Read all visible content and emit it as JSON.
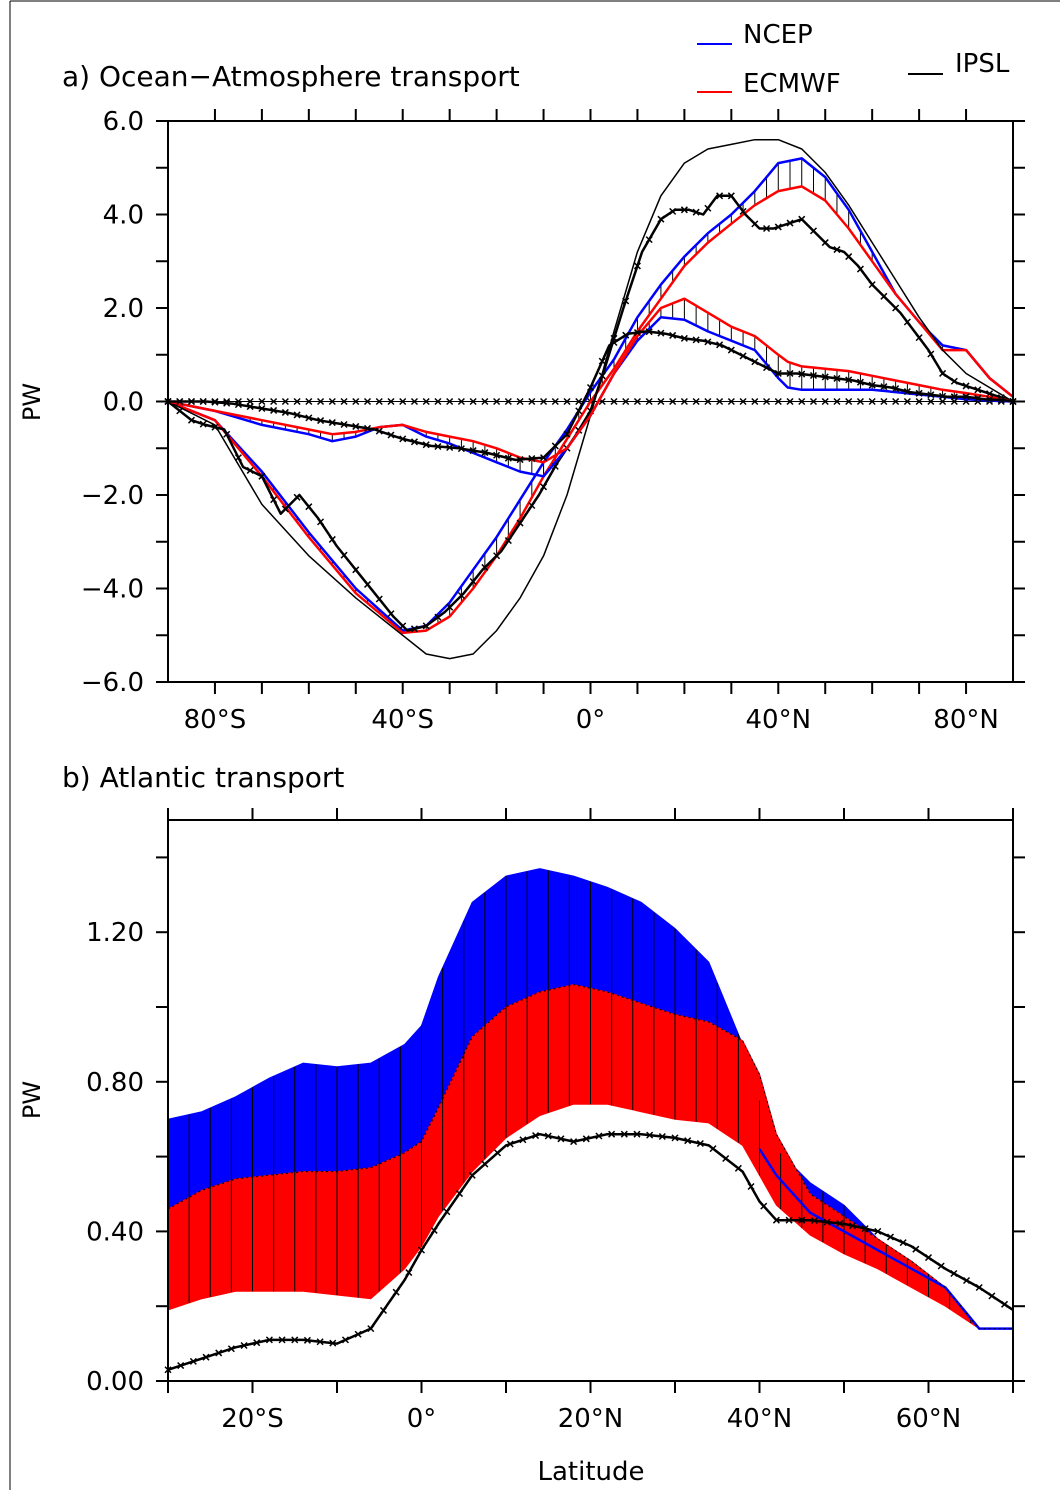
{
  "legend": {
    "ncep": {
      "label": "NCEP",
      "color": "#0000ff"
    },
    "ecmwf": {
      "label": "ECMWF",
      "color": "#ff0000"
    },
    "ipsl": {
      "label": "IPSL",
      "color": "#000000"
    }
  },
  "chart_data": [
    {
      "type": "line",
      "title": "a) Ocean−Atmosphere transport",
      "ylabel": "PW",
      "xlabel": "",
      "xlim": [
        -90,
        90
      ],
      "ylim": [
        -6,
        6
      ],
      "xticks": [
        {
          "value": -80,
          "label": "80°S"
        },
        {
          "value": -40,
          "label": "40°S"
        },
        {
          "value": 0,
          "label": "0°"
        },
        {
          "value": 40,
          "label": "40°N"
        },
        {
          "value": 80,
          "label": "80°N"
        }
      ],
      "yticks": [
        {
          "value": -6,
          "label": "−6.0"
        },
        {
          "value": -4,
          "label": "−4.0"
        },
        {
          "value": -2,
          "label": "−2.0"
        },
        {
          "value": 0,
          "label": "0.0"
        },
        {
          "value": 2,
          "label": "2.0"
        },
        {
          "value": 4,
          "label": "4.0"
        },
        {
          "value": 6,
          "label": "6.0"
        }
      ],
      "series": [
        {
          "name": "NCEP",
          "key": "ncep_total",
          "color": "#0000ff",
          "x": [
            -90,
            -80,
            -70,
            -60,
            -50,
            -40,
            -35,
            -30,
            -25,
            -20,
            -15,
            -10,
            -5,
            0,
            5,
            10,
            15,
            20,
            25,
            30,
            35,
            40,
            45,
            50,
            55,
            60,
            65,
            70,
            75,
            80,
            85,
            90
          ],
          "y": [
            0,
            -0.4,
            -1.5,
            -2.8,
            -4.0,
            -4.9,
            -4.8,
            -4.3,
            -3.6,
            -2.9,
            -2.1,
            -1.3,
            -0.6,
            0.2,
            0.9,
            1.8,
            2.5,
            3.1,
            3.6,
            4.0,
            4.5,
            5.1,
            5.2,
            4.8,
            4.1,
            3.2,
            2.3,
            1.7,
            1.2,
            1.1,
            0.5,
            0.1
          ]
        },
        {
          "name": "ECMWF",
          "key": "ecmwf_total",
          "color": "#ff0000",
          "x": [
            -90,
            -80,
            -70,
            -60,
            -50,
            -40,
            -35,
            -30,
            -25,
            -20,
            -15,
            -10,
            -5,
            0,
            5,
            10,
            15,
            20,
            25,
            30,
            35,
            40,
            45,
            50,
            55,
            60,
            65,
            70,
            75,
            80,
            85,
            90
          ],
          "y": [
            0,
            -0.4,
            -1.6,
            -2.9,
            -4.1,
            -4.95,
            -4.9,
            -4.6,
            -4.0,
            -3.3,
            -2.5,
            -1.6,
            -0.8,
            0.0,
            0.7,
            1.5,
            2.2,
            2.9,
            3.4,
            3.8,
            4.2,
            4.5,
            4.6,
            4.3,
            3.7,
            3.0,
            2.3,
            1.7,
            1.1,
            1.1,
            0.5,
            0.1
          ]
        },
        {
          "name": "IPSL",
          "key": "ipsl_total",
          "color": "#000000",
          "x": [
            -90,
            -80,
            -70,
            -60,
            -50,
            -40,
            -35,
            -30,
            -25,
            -20,
            -15,
            -10,
            -5,
            0,
            5,
            10,
            15,
            20,
            25,
            30,
            35,
            40,
            45,
            50,
            55,
            60,
            65,
            70,
            75,
            80,
            85,
            90
          ],
          "y": [
            0,
            -0.5,
            -2.2,
            -3.3,
            -4.2,
            -5.0,
            -5.4,
            -5.5,
            -5.4,
            -4.9,
            -4.2,
            -3.3,
            -2.0,
            -0.3,
            1.5,
            3.2,
            4.4,
            5.1,
            5.4,
            5.5,
            5.6,
            5.6,
            5.4,
            4.9,
            4.2,
            3.4,
            2.6,
            1.8,
            1.1,
            0.6,
            0.3,
            0.0
          ]
        },
        {
          "name": "IPSL",
          "key": "ipsl_marked_total",
          "color": "#000000",
          "markers": true,
          "x": [
            -90,
            -85,
            -82,
            -78,
            -74,
            -70,
            -66,
            -62,
            -58,
            -54,
            -50,
            -46,
            -42,
            -39,
            -35,
            -31,
            -27,
            -23,
            -19,
            -15,
            -11,
            -7,
            -3,
            0,
            3,
            7,
            11,
            15,
            18,
            21,
            24,
            27,
            30,
            33,
            36,
            39,
            42,
            45,
            48,
            51,
            54,
            57,
            60,
            63,
            66,
            69,
            72,
            75,
            78,
            81,
            84,
            87,
            90
          ],
          "y": [
            0,
            -0.4,
            -0.5,
            -0.6,
            -1.4,
            -1.6,
            -2.4,
            -2.0,
            -2.5,
            -3.1,
            -3.6,
            -4.1,
            -4.6,
            -4.9,
            -4.8,
            -4.5,
            -4.1,
            -3.6,
            -3.2,
            -2.6,
            -2.0,
            -1.3,
            -0.7,
            -0.2,
            0.7,
            2.0,
            3.2,
            3.9,
            4.1,
            4.1,
            4.0,
            4.4,
            4.4,
            4.0,
            3.7,
            3.7,
            3.8,
            3.9,
            3.6,
            3.3,
            3.2,
            2.9,
            2.5,
            2.2,
            1.9,
            1.5,
            1.1,
            0.6,
            0.4,
            0.3,
            0.2,
            0.1,
            0
          ]
        },
        {
          "name": "NCEP",
          "key": "ncep_component",
          "color": "#0000ff",
          "x": [
            -90,
            -80,
            -70,
            -60,
            -55,
            -50,
            -45,
            -40,
            -35,
            -30,
            -25,
            -20,
            -15,
            -10,
            -5,
            0,
            5,
            10,
            15,
            20,
            25,
            30,
            35,
            40,
            42,
            45,
            50,
            55,
            60,
            65,
            70,
            75,
            80,
            85,
            90
          ],
          "y": [
            0,
            -0.2,
            -0.5,
            -0.7,
            -0.85,
            -0.75,
            -0.55,
            -0.5,
            -0.75,
            -0.9,
            -1.1,
            -1.3,
            -1.5,
            -1.6,
            -1.0,
            -0.3,
            0.6,
            1.3,
            1.8,
            1.75,
            1.5,
            1.3,
            1.1,
            0.5,
            0.3,
            0.25,
            0.25,
            0.25,
            0.25,
            0.2,
            0.15,
            0.1,
            0.05,
            0.02,
            0
          ]
        },
        {
          "name": "ECMWF",
          "key": "ecmwf_component",
          "color": "#ff0000",
          "x": [
            -90,
            -80,
            -70,
            -60,
            -55,
            -50,
            -45,
            -40,
            -35,
            -30,
            -25,
            -20,
            -15,
            -10,
            -5,
            0,
            5,
            10,
            15,
            20,
            25,
            30,
            35,
            40,
            42,
            45,
            50,
            55,
            60,
            65,
            70,
            75,
            80,
            85,
            90
          ],
          "y": [
            0,
            -0.2,
            -0.4,
            -0.6,
            -0.7,
            -0.65,
            -0.55,
            -0.5,
            -0.65,
            -0.75,
            -0.85,
            -1.0,
            -1.2,
            -1.3,
            -1.0,
            -0.3,
            0.6,
            1.4,
            2.0,
            2.2,
            1.9,
            1.6,
            1.4,
            1.0,
            0.85,
            0.75,
            0.7,
            0.65,
            0.55,
            0.45,
            0.35,
            0.25,
            0.18,
            0.1,
            0
          ]
        },
        {
          "name": "IPSL",
          "key": "ipsl_marked_component",
          "color": "#000000",
          "markers": true,
          "x": [
            -90,
            -82,
            -76,
            -70,
            -64,
            -58,
            -52,
            -46,
            -40,
            -34,
            -28,
            -22,
            -16,
            -10,
            -5,
            0,
            4,
            8,
            12,
            16,
            20,
            24,
            28,
            32,
            36,
            40,
            44,
            48,
            52,
            56,
            60,
            64,
            68,
            72,
            76,
            80,
            84,
            88,
            90
          ],
          "y": [
            0,
            0.0,
            -0.05,
            -0.15,
            -0.25,
            -0.4,
            -0.5,
            -0.6,
            -0.8,
            -0.95,
            -1.0,
            -1.1,
            -1.25,
            -1.2,
            -0.7,
            0.3,
            1.2,
            1.45,
            1.5,
            1.45,
            1.35,
            1.3,
            1.2,
            1.0,
            0.8,
            0.6,
            0.6,
            0.55,
            0.5,
            0.45,
            0.35,
            0.3,
            0.2,
            0.15,
            0.1,
            0.1,
            0.05,
            0.03,
            0
          ]
        },
        {
          "name": "IPSL",
          "key": "zero_line",
          "color": "#000000",
          "markers": true,
          "x": [
            -90,
            90
          ],
          "y": [
            0,
            0
          ]
        }
      ]
    },
    {
      "type": "area",
      "title": "b) Atlantic transport",
      "ylabel": "PW",
      "xlabel": "Latitude",
      "xlim": [
        -30,
        70
      ],
      "ylim": [
        0,
        1.5
      ],
      "xticks": [
        {
          "value": -20,
          "label": "20°S"
        },
        {
          "value": 0,
          "label": "0°"
        },
        {
          "value": 20,
          "label": "20°N"
        },
        {
          "value": 40,
          "label": "40°N"
        },
        {
          "value": 60,
          "label": "60°N"
        }
      ],
      "yticks": [
        {
          "value": 0,
          "label": "0.00"
        },
        {
          "value": 0.4,
          "label": "0.40"
        },
        {
          "value": 0.8,
          "label": "0.80"
        },
        {
          "value": 1.2,
          "label": "1.20"
        }
      ],
      "x": [
        -30,
        -26,
        -22,
        -18,
        -14,
        -10,
        -6,
        -2,
        0,
        2,
        6,
        10,
        14,
        18,
        22,
        26,
        30,
        34,
        38,
        40,
        42,
        46,
        50,
        54,
        58,
        62,
        66,
        70
      ],
      "series": [
        {
          "name": "NCEP",
          "key": "ncep_upper",
          "color": "#0000ff",
          "values": [
            0.7,
            0.72,
            0.76,
            0.81,
            0.85,
            0.84,
            0.85,
            0.9,
            0.95,
            1.08,
            1.28,
            1.35,
            1.37,
            1.35,
            1.32,
            1.28,
            1.21,
            1.12,
            0.9,
            0.75,
            0.62,
            0.53,
            0.47,
            0.38,
            0.32,
            0.25,
            0.14,
            0.14
          ]
        },
        {
          "name": "NCEP",
          "key": "ncep_lower",
          "color": "#0000ff",
          "values": [
            0.46,
            0.51,
            0.54,
            0.55,
            0.56,
            0.56,
            0.57,
            0.61,
            0.64,
            0.73,
            0.92,
            1.0,
            1.04,
            1.06,
            1.04,
            1.01,
            0.98,
            0.96,
            0.91,
            0.82,
            0.66,
            0.5,
            0.44,
            0.38,
            0.32,
            0.25,
            0.14,
            0.14
          ]
        },
        {
          "name": "ECMWF",
          "key": "ecmwf_upper",
          "color": "#ff0000",
          "values": [
            0.46,
            0.51,
            0.54,
            0.55,
            0.56,
            0.56,
            0.57,
            0.61,
            0.64,
            0.73,
            0.92,
            1.0,
            1.04,
            1.06,
            1.04,
            1.01,
            0.98,
            0.96,
            0.91,
            0.82,
            0.66,
            0.5,
            0.44,
            0.38,
            0.32,
            0.25,
            0.14,
            0.14
          ]
        },
        {
          "name": "ECMWF",
          "key": "ecmwf_lower",
          "color": "#ff0000",
          "values": [
            0.19,
            0.22,
            0.24,
            0.24,
            0.24,
            0.23,
            0.22,
            0.3,
            0.36,
            0.44,
            0.56,
            0.65,
            0.71,
            0.74,
            0.74,
            0.72,
            0.7,
            0.69,
            0.63,
            0.55,
            0.47,
            0.39,
            0.34,
            0.3,
            0.25,
            0.2,
            0.14,
            0.14
          ]
        },
        {
          "name": "NCEP",
          "key": "ncep_mid_line",
          "color": "#0000ff",
          "values": [
            null,
            null,
            null,
            null,
            null,
            null,
            null,
            null,
            null,
            null,
            null,
            null,
            null,
            null,
            null,
            null,
            null,
            null,
            null,
            0.62,
            0.55,
            0.45,
            0.4,
            0.35,
            0.3,
            0.25,
            0.14,
            0.14
          ]
        },
        {
          "name": "IPSL",
          "key": "ipsl_marked",
          "color": "#000000",
          "markers": true,
          "values": [
            0.03,
            0.06,
            0.09,
            0.11,
            0.11,
            0.1,
            0.14,
            0.27,
            0.35,
            0.42,
            0.55,
            0.63,
            0.66,
            0.64,
            0.66,
            0.66,
            0.65,
            0.63,
            0.56,
            0.48,
            0.43,
            0.43,
            0.42,
            0.4,
            0.36,
            0.3,
            0.25,
            0.19
          ]
        }
      ]
    }
  ]
}
